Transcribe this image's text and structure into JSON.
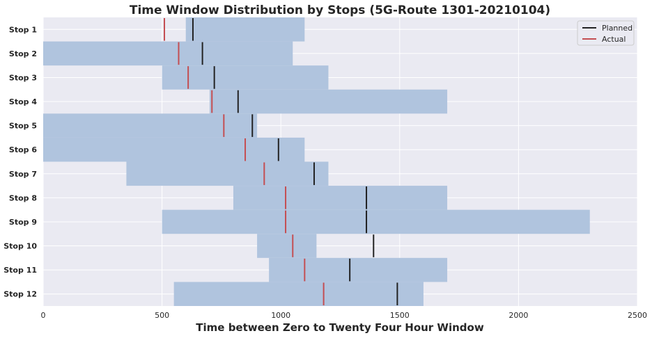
{
  "chart_data": {
    "type": "bar",
    "orientation": "horizontal",
    "title": "Time Window Distribution by Stops (5G-Route 1301-20210104)",
    "xlabel": "Time between Zero to Twenty Four Hour Window",
    "ylabel": "",
    "xlim": [
      0,
      2500
    ],
    "xticks": [
      0,
      500,
      1000,
      1500,
      2000,
      2500
    ],
    "grid": true,
    "legend_position": "top-right",
    "categories": [
      "Stop 1",
      "Stop 2",
      "Stop 3",
      "Stop 4",
      "Stop 5",
      "Stop 6",
      "Stop 7",
      "Stop 8",
      "Stop 9",
      "Stop 10",
      "Stop 11",
      "Stop 12"
    ],
    "windows": [
      {
        "start": 600,
        "end": 1100
      },
      {
        "start": 0,
        "end": 1050
      },
      {
        "start": 500,
        "end": 1200
      },
      {
        "start": 700,
        "end": 1700
      },
      {
        "start": 0,
        "end": 900
      },
      {
        "start": 0,
        "end": 1100
      },
      {
        "start": 350,
        "end": 1200
      },
      {
        "start": 800,
        "end": 1700
      },
      {
        "start": 500,
        "end": 2300
      },
      {
        "start": 900,
        "end": 1150
      },
      {
        "start": 950,
        "end": 1700
      },
      {
        "start": 550,
        "end": 1600
      }
    ],
    "series": [
      {
        "name": "Planned",
        "color": "#222222",
        "values": [
          630,
          670,
          720,
          820,
          880,
          990,
          1140,
          1360,
          1360,
          1390,
          1290,
          1490
        ]
      },
      {
        "name": "Actual",
        "color": "#c44e52",
        "values": [
          510,
          570,
          610,
          710,
          760,
          850,
          930,
          1020,
          1020,
          1050,
          1100,
          1180
        ]
      }
    ],
    "colors": {
      "window": "#b0c4de",
      "background": "#eaeaf2",
      "grid": "#ffffff"
    }
  }
}
